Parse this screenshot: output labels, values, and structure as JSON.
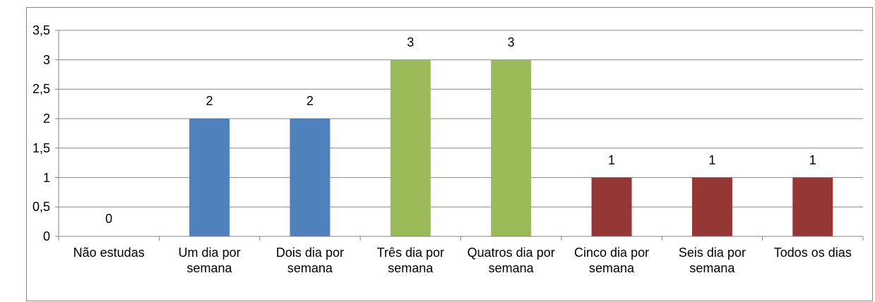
{
  "chart_data": {
    "type": "bar",
    "categories": [
      "Não estudas",
      "Um dia por semana",
      "Dois dia por semana",
      "Três dia por semana",
      "Quatros dia por semana",
      "Cinco dia por semana",
      "Seis dia por semana",
      "Todos os dias"
    ],
    "values": [
      0,
      2,
      2,
      3,
      3,
      1,
      1,
      1
    ],
    "colors": [
      "#4f81bd",
      "#4f81bd",
      "#4f81bd",
      "#9bbb59",
      "#9bbb59",
      "#953735",
      "#953735",
      "#953735"
    ],
    "ylim": [
      0,
      3.5
    ],
    "yticks": [
      0,
      {
        "value": 0.5,
        "label": "0,5"
      },
      1,
      {
        "value": 1.5,
        "label": "1,5"
      },
      2,
      {
        "value": 2.5,
        "label": "2,5"
      },
      3,
      {
        "value": 3.5,
        "label": "3,5"
      }
    ],
    "grid": true,
    "data_labels": true
  }
}
